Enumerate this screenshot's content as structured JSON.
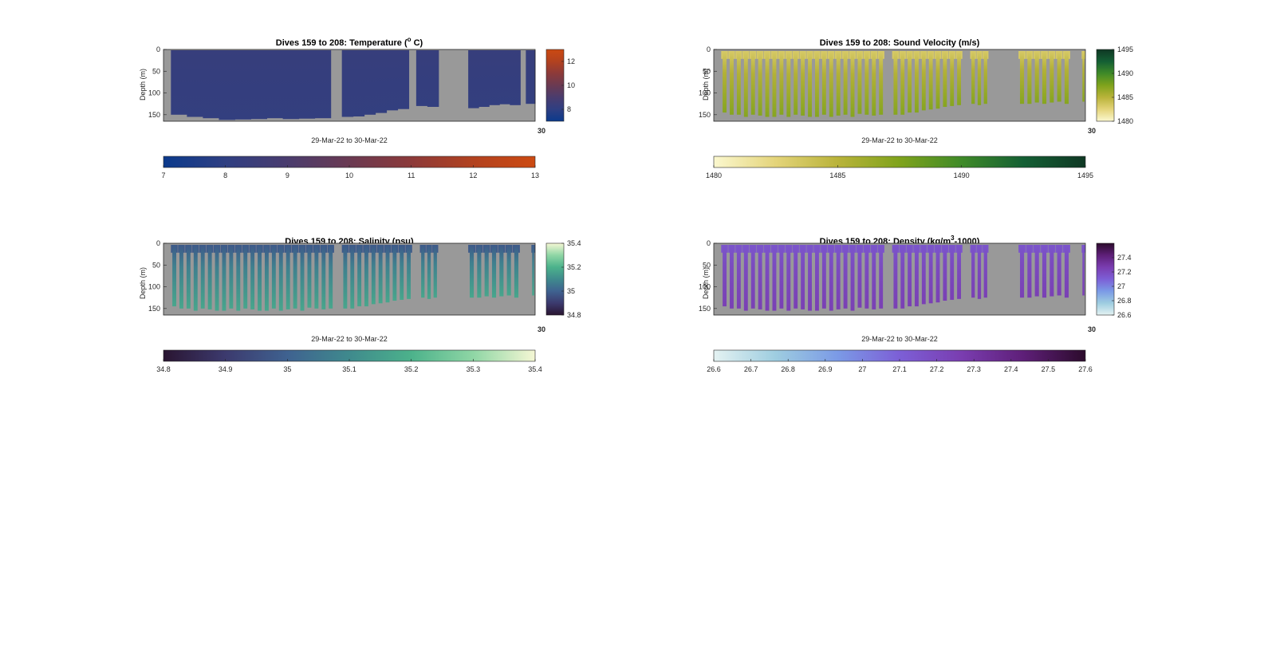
{
  "figure": {
    "background": "#ffffff",
    "axes_background": "#999999",
    "depth_axis_label": "Depth (m)",
    "date_range_label": "29-Mar-22 to 30-Mar-22",
    "x_end_tick_label": "30"
  },
  "chart_data": [
    {
      "type": "heatmap",
      "panel": "temperature",
      "title": "Dives 159 to 208: Temperature (",
      "title_sup": "o",
      "title_after": " C)",
      "ylabel": "Depth (m)",
      "xlabel": "29-Mar-22 to 30-Mar-22",
      "ylim": [
        0,
        165
      ],
      "y_ticks": [
        0,
        50,
        100,
        150
      ],
      "y_reversed": true,
      "colormap": [
        "#0b3a8c",
        "#2f3f82",
        "#4a3c6e",
        "#6a3a52",
        "#8c3a3a",
        "#b2421f",
        "#cc4a12"
      ],
      "cbar_range": [
        7,
        13
      ],
      "right_colorbar_ticks": [
        8,
        10,
        12
      ],
      "bottom_colorbar_ticks": [
        7,
        8,
        9,
        10,
        11,
        12,
        13
      ],
      "value_surface": 8.3,
      "value_deep": 8.15,
      "profiles": [
        {
          "start": 0.02,
          "end": 0.45,
          "depth": [
            150,
            155,
            158,
            162,
            161,
            160,
            158,
            160,
            159,
            158
          ]
        },
        {
          "start": 0.48,
          "end": 0.66,
          "depth": [
            155,
            154,
            150,
            146,
            140,
            137
          ]
        },
        {
          "start": 0.68,
          "end": 0.74,
          "depth": [
            130,
            132
          ]
        },
        {
          "start": 0.82,
          "end": 0.96,
          "depth": [
            135,
            132,
            128,
            126,
            128
          ]
        },
        {
          "start": 0.975,
          "end": 1.0,
          "depth": [
            125
          ]
        }
      ]
    },
    {
      "type": "heatmap",
      "panel": "sound_velocity",
      "title": "Dives 159 to 208: Sound Velocity (m/s)",
      "ylabel": "Depth (m)",
      "xlabel": "29-Mar-22 to 30-Mar-22",
      "ylim": [
        0,
        165
      ],
      "y_ticks": [
        0,
        50,
        100,
        150
      ],
      "y_reversed": true,
      "colormap": [
        "#fbf8cf",
        "#e4d47a",
        "#b9b33a",
        "#7fa31c",
        "#3f8a28",
        "#145f34",
        "#0f3824"
      ],
      "cbar_range": [
        1480,
        1495
      ],
      "right_colorbar_ticks": [
        1480,
        1485,
        1490,
        1495
      ],
      "bottom_colorbar_ticks": [
        1480,
        1485,
        1490,
        1495
      ],
      "value_surface": 1483.3,
      "value_deep": 1487.2,
      "profiles": [
        {
          "start": 0.02,
          "end": 0.46,
          "count": 23,
          "depth": [
            145,
            150,
            150,
            155,
            150,
            152,
            155,
            155,
            150,
            155,
            150,
            152,
            155,
            155,
            150,
            155,
            152,
            150,
            155,
            148,
            150,
            152,
            150
          ]
        },
        {
          "start": 0.48,
          "end": 0.67,
          "count": 10,
          "depth": [
            150,
            150,
            145,
            145,
            140,
            138,
            136,
            132,
            130,
            128
          ]
        },
        {
          "start": 0.69,
          "end": 0.74,
          "count": 3,
          "depth": [
            125,
            128,
            125
          ]
        },
        {
          "start": 0.82,
          "end": 0.96,
          "count": 7,
          "depth": [
            125,
            125,
            122,
            125,
            122,
            120,
            125
          ]
        },
        {
          "start": 0.99,
          "end": 1.0,
          "count": 1,
          "depth": [
            120
          ]
        }
      ]
    },
    {
      "type": "heatmap",
      "panel": "salinity",
      "title": "Dives 159 to 208: Salinity (psu)",
      "ylabel": "Depth (m)",
      "xlabel": "29-Mar-22 to 30-Mar-22",
      "ylim": [
        0,
        165
      ],
      "y_ticks": [
        0,
        50,
        100,
        150
      ],
      "y_reversed": true,
      "colormap": [
        "#2a1531",
        "#3c3a6e",
        "#3f6290",
        "#3f8a8d",
        "#4cb28b",
        "#8fd6a5",
        "#f5f7d4"
      ],
      "cbar_range": [
        34.8,
        35.4
      ],
      "right_colorbar_ticks": [
        34.8,
        35,
        35.2,
        35.4
      ],
      "bottom_colorbar_ticks": [
        34.8,
        34.9,
        35,
        35.1,
        35.2,
        35.3,
        35.4
      ],
      "value_surface": 34.98,
      "value_deep": 35.17,
      "profiles": [
        {
          "start": 0.02,
          "end": 0.46,
          "count": 23,
          "depth": [
            145,
            150,
            150,
            155,
            150,
            152,
            155,
            155,
            150,
            155,
            150,
            152,
            155,
            155,
            150,
            155,
            152,
            150,
            155,
            148,
            150,
            152,
            150
          ]
        },
        {
          "start": 0.48,
          "end": 0.67,
          "count": 10,
          "depth": [
            150,
            150,
            145,
            145,
            140,
            138,
            136,
            132,
            130,
            128
          ]
        },
        {
          "start": 0.69,
          "end": 0.74,
          "count": 3,
          "depth": [
            125,
            128,
            125
          ]
        },
        {
          "start": 0.82,
          "end": 0.96,
          "count": 7,
          "depth": [
            125,
            125,
            122,
            125,
            122,
            120,
            125
          ]
        },
        {
          "start": 0.99,
          "end": 1.0,
          "count": 1,
          "depth": [
            120
          ]
        }
      ]
    },
    {
      "type": "heatmap",
      "panel": "density",
      "title": "Dives 159 to 208: Density (kg/m",
      "title_sup": "3",
      "title_after": "-1000)",
      "ylabel": "Depth (m)",
      "xlabel": "29-Mar-22 to 30-Mar-22",
      "ylim": [
        0,
        165
      ],
      "y_ticks": [
        0,
        50,
        100,
        150
      ],
      "y_reversed": true,
      "colormap": [
        "#e4f2f2",
        "#9ecde0",
        "#7b9ae6",
        "#7c5fd6",
        "#7a3db0",
        "#5e1f78",
        "#2c0b2c"
      ],
      "cbar_range": [
        26.6,
        27.6
      ],
      "right_colorbar_ticks": [
        26.6,
        26.8,
        27,
        27.2,
        27.4
      ],
      "bottom_colorbar_ticks": [
        26.6,
        26.7,
        26.8,
        26.9,
        27,
        27.1,
        27.2,
        27.3,
        27.4,
        27.5,
        27.6
      ],
      "value_surface": 27.15,
      "value_deep": 27.25,
      "profiles": [
        {
          "start": 0.02,
          "end": 0.46,
          "count": 23,
          "depth": [
            145,
            150,
            150,
            155,
            150,
            152,
            155,
            155,
            150,
            155,
            150,
            152,
            155,
            155,
            150,
            155,
            152,
            150,
            155,
            148,
            150,
            152,
            150
          ]
        },
        {
          "start": 0.48,
          "end": 0.67,
          "count": 10,
          "depth": [
            150,
            150,
            145,
            145,
            140,
            138,
            136,
            132,
            130,
            128
          ]
        },
        {
          "start": 0.69,
          "end": 0.74,
          "count": 3,
          "depth": [
            125,
            128,
            125
          ]
        },
        {
          "start": 0.82,
          "end": 0.96,
          "count": 7,
          "depth": [
            125,
            125,
            122,
            125,
            122,
            120,
            125
          ]
        },
        {
          "start": 0.99,
          "end": 1.0,
          "count": 1,
          "depth": [
            120
          ]
        }
      ]
    }
  ]
}
